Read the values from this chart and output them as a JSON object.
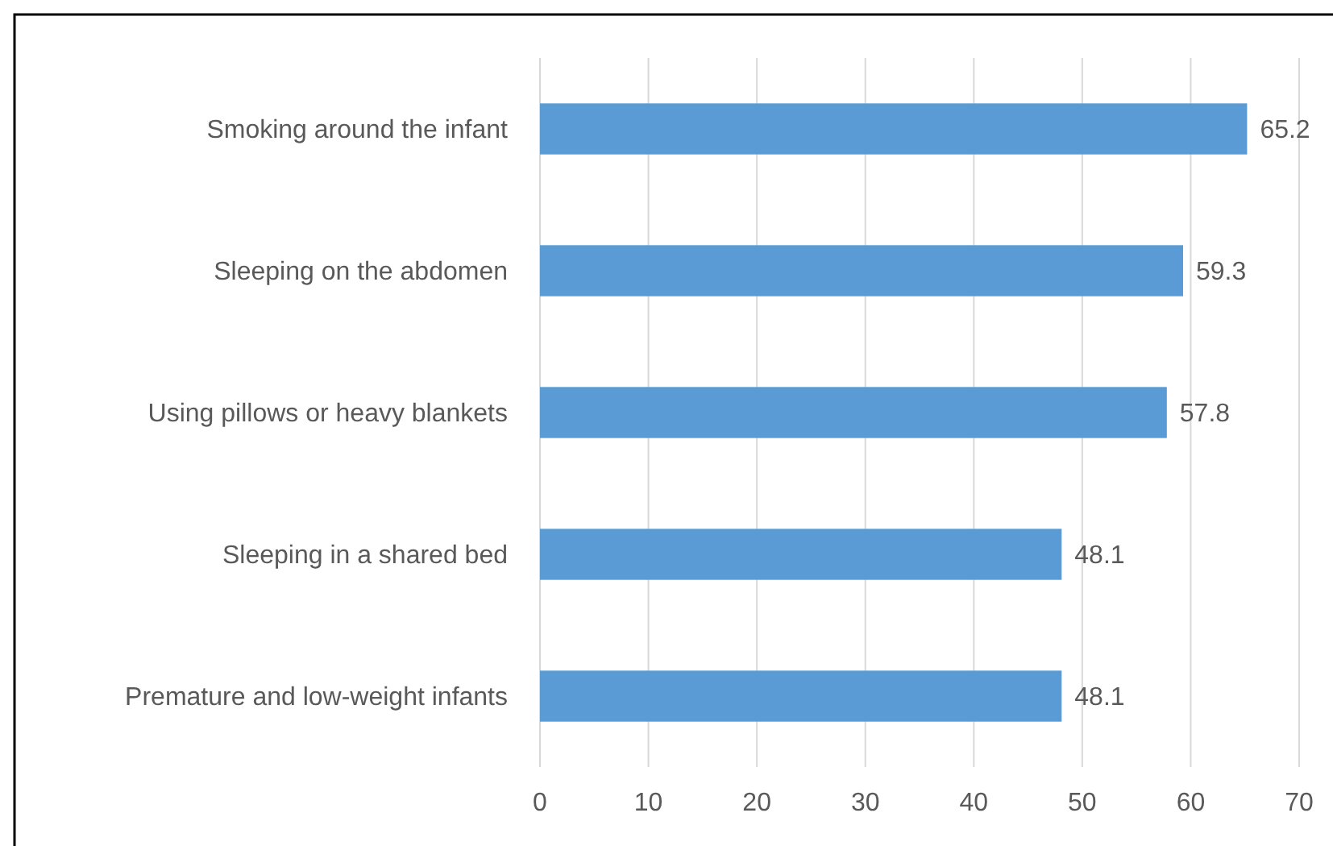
{
  "chart_data": {
    "type": "bar",
    "orientation": "horizontal",
    "categories": [
      "Smoking around the infant",
      "Sleeping on the abdomen",
      "Using pillows or heavy blankets",
      "Sleeping in a shared bed",
      "Premature and low-weight infants"
    ],
    "values": [
      65.2,
      59.3,
      57.8,
      48.1,
      48.1
    ],
    "color": "#5b9bd5",
    "xlim": [
      0,
      70
    ],
    "xticks": [
      0,
      10,
      20,
      30,
      40,
      50,
      60,
      70
    ],
    "grid": "x",
    "data_labels": true
  }
}
